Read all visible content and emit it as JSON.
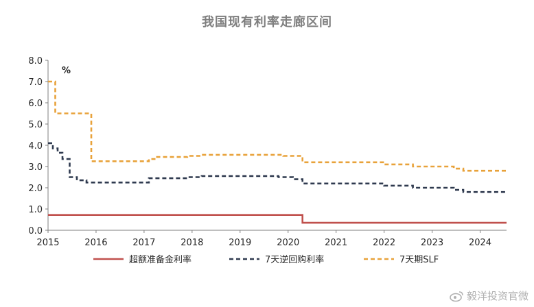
{
  "title": "我国现有利率走廊区间",
  "unit_label": "%",
  "watermark": "毅洋投资官微",
  "chart_data": {
    "type": "line",
    "title": "我国现有利率走廊区间",
    "unit": "%",
    "xlim": [
      2015,
      2024.55
    ],
    "ylim": [
      0,
      8
    ],
    "x_ticks": [
      2015,
      2016,
      2017,
      2018,
      2019,
      2020,
      2021,
      2022,
      2023,
      2024
    ],
    "y_ticks": [
      "0.0",
      "1.0",
      "2.0",
      "3.0",
      "4.0",
      "5.0",
      "6.0",
      "7.0",
      "8.0"
    ],
    "grid": false,
    "legend_position": "bottom",
    "series": [
      {
        "name": "超额准备金利率",
        "color": "#c0504d",
        "style": "solid",
        "points": [
          [
            2015,
            0.72
          ],
          [
            2020.3,
            0.72
          ],
          [
            2020.3,
            0.35
          ],
          [
            2024.55,
            0.35
          ]
        ]
      },
      {
        "name": "7天逆回购利率",
        "color": "#2f3a4f",
        "style": "dashed",
        "points": [
          [
            2015,
            4.1
          ],
          [
            2015.1,
            4.1
          ],
          [
            2015.1,
            3.85
          ],
          [
            2015.2,
            3.85
          ],
          [
            2015.2,
            3.65
          ],
          [
            2015.3,
            3.65
          ],
          [
            2015.3,
            3.35
          ],
          [
            2015.45,
            3.35
          ],
          [
            2015.45,
            2.5
          ],
          [
            2015.6,
            2.5
          ],
          [
            2015.6,
            2.35
          ],
          [
            2015.8,
            2.35
          ],
          [
            2015.8,
            2.25
          ],
          [
            2017.1,
            2.25
          ],
          [
            2017.1,
            2.45
          ],
          [
            2017.9,
            2.45
          ],
          [
            2017.9,
            2.5
          ],
          [
            2018.2,
            2.5
          ],
          [
            2018.2,
            2.55
          ],
          [
            2019.8,
            2.55
          ],
          [
            2019.8,
            2.5
          ],
          [
            2020.1,
            2.5
          ],
          [
            2020.1,
            2.4
          ],
          [
            2020.3,
            2.4
          ],
          [
            2020.3,
            2.2
          ],
          [
            2022.0,
            2.2
          ],
          [
            2022.0,
            2.1
          ],
          [
            2022.6,
            2.1
          ],
          [
            2022.6,
            2.0
          ],
          [
            2023.45,
            2.0
          ],
          [
            2023.45,
            1.9
          ],
          [
            2023.65,
            1.9
          ],
          [
            2023.65,
            1.8
          ],
          [
            2024.55,
            1.8
          ]
        ]
      },
      {
        "name": "7天期SLF",
        "color": "#e8a23a",
        "style": "dashed",
        "points": [
          [
            2015,
            7.0
          ],
          [
            2015.15,
            7.0
          ],
          [
            2015.15,
            5.5
          ],
          [
            2015.9,
            5.5
          ],
          [
            2015.9,
            3.25
          ],
          [
            2017.1,
            3.25
          ],
          [
            2017.1,
            3.35
          ],
          [
            2017.25,
            3.35
          ],
          [
            2017.25,
            3.45
          ],
          [
            2017.9,
            3.45
          ],
          [
            2017.9,
            3.5
          ],
          [
            2018.2,
            3.5
          ],
          [
            2018.2,
            3.55
          ],
          [
            2019.9,
            3.55
          ],
          [
            2019.9,
            3.5
          ],
          [
            2020.3,
            3.5
          ],
          [
            2020.3,
            3.2
          ],
          [
            2022.0,
            3.2
          ],
          [
            2022.0,
            3.1
          ],
          [
            2022.6,
            3.1
          ],
          [
            2022.6,
            3.0
          ],
          [
            2023.45,
            3.0
          ],
          [
            2023.45,
            2.9
          ],
          [
            2023.65,
            2.9
          ],
          [
            2023.65,
            2.8
          ],
          [
            2024.55,
            2.8
          ]
        ]
      }
    ]
  }
}
